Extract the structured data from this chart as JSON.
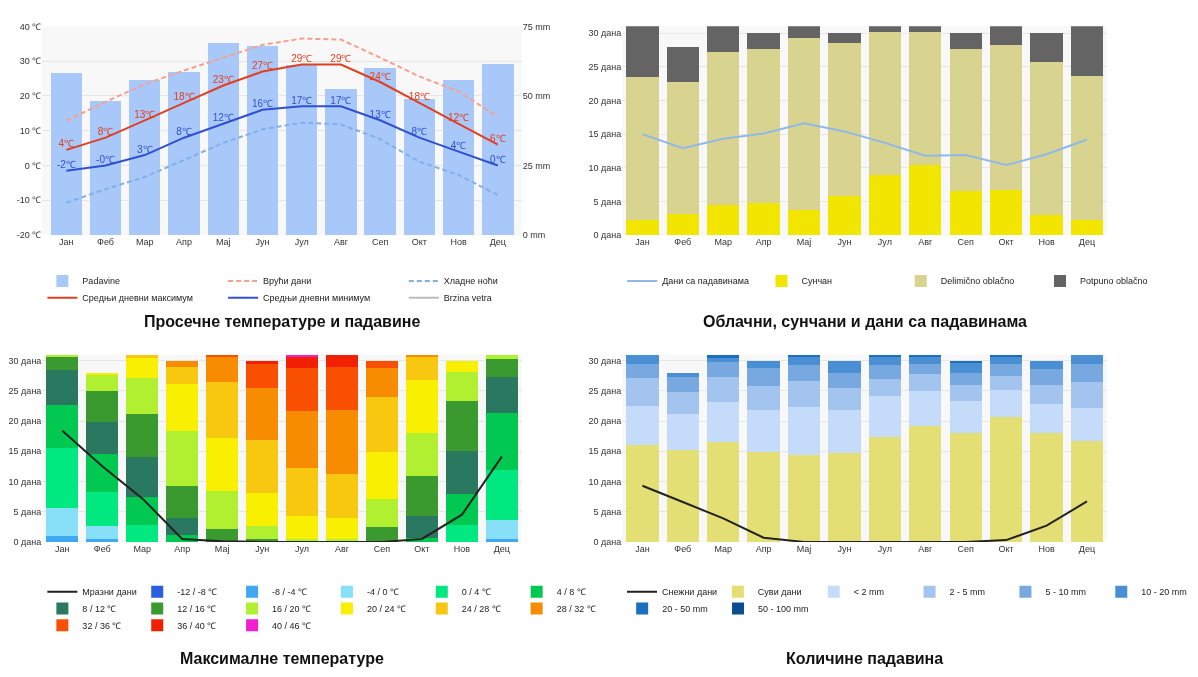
{
  "chart_data": [
    {
      "type": "bar",
      "title": "Просечне температуре и падавине",
      "categories": [
        "Јан",
        "Феб",
        "Мар",
        "Апр",
        "Мај",
        "Јун",
        "Јул",
        "Авг",
        "Сеп",
        "Окт",
        "Нов",
        "Дец"
      ],
      "ylim": [
        -20,
        40
      ],
      "yticks": [
        {
          "value": -20,
          "label": "-20 ℃"
        },
        {
          "value": -10,
          "label": "-10 ℃"
        },
        {
          "value": 0,
          "label": "0 ℃"
        },
        {
          "value": 10,
          "label": "10 ℃"
        },
        {
          "value": 20,
          "label": "20 ℃"
        },
        {
          "value": 30,
          "label": "30 ℃"
        },
        {
          "value": 40,
          "label": "40 ℃"
        }
      ],
      "y2lim": [
        0,
        75
      ],
      "y2ticks": [
        {
          "value": 0,
          "label": "0 mm"
        },
        {
          "value": 25,
          "label": "25 mm"
        },
        {
          "value": 50,
          "label": "50 mm"
        },
        {
          "value": 75,
          "label": "75 mm"
        }
      ],
      "grid": "y",
      "legend": "bottom",
      "marker": "none",
      "series": [
        {
          "name": "Padavine",
          "type": "bar",
          "axis": "y2",
          "color": "#a8c8fa",
          "values": [
            58.2,
            48.2,
            55.7,
            58.5,
            68.9,
            68.1,
            61.1,
            52.5,
            60,
            49,
            55.7,
            61.3
          ]
        },
        {
          "name": "Врући дани",
          "type": "line",
          "line_style": "dashed",
          "color": "#f8a090",
          "values": [
            12.9,
            18.3,
            23.4,
            27.3,
            31,
            34.7,
            36.5,
            36.2,
            31,
            25.6,
            21.3,
            14
          ]
        },
        {
          "name": "Хладне ноћи",
          "type": "line",
          "line_style": "dashed",
          "color": "#80b0e8",
          "values": [
            -10.7,
            -6.8,
            -3.3,
            1.6,
            6.5,
            10.4,
            12.3,
            11.8,
            7.6,
            1.1,
            -2.7,
            -8.5
          ]
        },
        {
          "name": "Средњи дневни максимум",
          "type": "line",
          "line_style": "solid",
          "color": "#e04020",
          "values": [
            4.5,
            8,
            13,
            18,
            23,
            27,
            29,
            29,
            24,
            18,
            12,
            6
          ],
          "value_labels": [
            "4℃",
            "8℃",
            "13℃",
            "18℃",
            "23℃",
            "27℃",
            "29℃",
            "29℃",
            "24℃",
            "18℃",
            "12℃",
            "6℃"
          ]
        },
        {
          "name": "Средњи дневни минимум",
          "type": "line",
          "line_style": "solid",
          "color": "#3050d0",
          "values": [
            -1.5,
            0,
            3,
            8,
            12,
            16,
            17,
            17,
            13,
            8,
            4,
            0
          ],
          "value_labels": [
            "-2℃",
            "-0℃",
            "3℃",
            "8℃",
            "12℃",
            "16℃",
            "17℃",
            "17℃",
            "13℃",
            "8℃",
            "4℃",
            "0℃"
          ]
        },
        {
          "name": "Brzina vetra",
          "type": "line",
          "line_style": "solid",
          "color": "#bbbbbb",
          "values": [
            null,
            null,
            null,
            null,
            null,
            null,
            null,
            null,
            null,
            null,
            null,
            null
          ]
        }
      ]
    },
    {
      "type": "bar",
      "stacked": true,
      "title": "Облачни, сунчани и дани са падавинама",
      "categories": [
        "Јан",
        "Феб",
        "Мар",
        "Апр",
        "Мај",
        "Јун",
        "Јул",
        "Авг",
        "Сеп",
        "Окт",
        "Нов",
        "Дец"
      ],
      "ylim": [
        0,
        31
      ],
      "yticks": [
        {
          "value": 0,
          "label": "0 дана"
        },
        {
          "value": 5,
          "label": "5 дана"
        },
        {
          "value": 10,
          "label": "10 дана"
        },
        {
          "value": 15,
          "label": "15 дана"
        },
        {
          "value": 20,
          "label": "20 дана"
        },
        {
          "value": 25,
          "label": "25 дана"
        },
        {
          "value": 30,
          "label": "30 дана"
        }
      ],
      "grid": "y",
      "legend": "bottom",
      "marker": "none",
      "series": [
        {
          "name": "Дани са падавинама",
          "type": "line",
          "color": "#90b8e8",
          "values": [
            15,
            12.9,
            14.3,
            15.1,
            16.6,
            15.4,
            13.7,
            11.8,
            11.9,
            10.4,
            12,
            14.2
          ]
        },
        {
          "name": "Сунчан",
          "type": "bar",
          "color": "#f2e600",
          "values": [
            2.3,
            3.2,
            4.4,
            4.7,
            3.7,
            5.8,
            8.9,
            10.4,
            6.6,
            6.7,
            3,
            2.3
          ]
        },
        {
          "name": "Delimično oblačno",
          "type": "bar",
          "color": "#d8d490",
          "values": [
            21.2,
            19.6,
            22.8,
            22.9,
            25.5,
            22.8,
            21.3,
            19.8,
            21.1,
            21.6,
            22.7,
            21.3
          ]
        },
        {
          "name": "Potpuno oblačno",
          "type": "bar",
          "color": "#646464",
          "values": [
            7.5,
            5.2,
            3.8,
            2.4,
            1.8,
            1.4,
            0.8,
            0.8,
            2.3,
            2.7,
            4.3,
            7.4
          ]
        }
      ]
    },
    {
      "type": "bar",
      "stacked": true,
      "title": "Максималне температуре",
      "categories": [
        "Јан",
        "Феб",
        "Мар",
        "Апр",
        "Мај",
        "Јун",
        "Јул",
        "Авг",
        "Сеп",
        "Окт",
        "Нов",
        "Дец"
      ],
      "ylim": [
        0,
        31
      ],
      "yticks": [
        {
          "value": 0,
          "label": "0 дана"
        },
        {
          "value": 5,
          "label": "5 дана"
        },
        {
          "value": 10,
          "label": "10 дана"
        },
        {
          "value": 15,
          "label": "15 дана"
        },
        {
          "value": 20,
          "label": "20 дана"
        },
        {
          "value": 25,
          "label": "25 дана"
        },
        {
          "value": 30,
          "label": "30 дана"
        }
      ],
      "grid": "y",
      "legend": "bottom",
      "marker": "none",
      "series": [
        {
          "name": "Мразни дани",
          "type": "line",
          "color": "#222222",
          "values": [
            18.4,
            12.5,
            7.2,
            0.5,
            0.1,
            0,
            0,
            0,
            0,
            0.5,
            4.5,
            14.1
          ]
        },
        {
          "name": "-12 / -8 ℃",
          "color": "#2860e0",
          "values": [
            null,
            null,
            null,
            null,
            null,
            null,
            null,
            null,
            null,
            null,
            null,
            null
          ]
        },
        {
          "name": "-8 / -4 ℃",
          "color": "#40a8f0",
          "values": [
            0.9,
            0.5,
            null,
            null,
            null,
            null,
            null,
            null,
            null,
            null,
            null,
            0.5
          ]
        },
        {
          "name": "-4 / 0 ℃",
          "color": "#88e0f8",
          "values": [
            4.7,
            2.2,
            null,
            null,
            null,
            null,
            null,
            null,
            null,
            null,
            null,
            3.2
          ]
        },
        {
          "name": "0 / 4 ℃",
          "color": "#00e880",
          "values": [
            9.9,
            5.5,
            2.8,
            null,
            null,
            null,
            null,
            null,
            null,
            null,
            2.8,
            8.2
          ]
        },
        {
          "name": "4 / 8 ℃",
          "color": "#00c850",
          "values": [
            7.1,
            6.3,
            4.6,
            1.2,
            null,
            null,
            null,
            null,
            null,
            0.6,
            5.2,
            9.5
          ]
        },
        {
          "name": "8 / 12 ℃",
          "color": "#2a7860",
          "values": [
            5.8,
            5.3,
            6.6,
            2.7,
            null,
            null,
            null,
            null,
            null,
            3.7,
            7,
            5.8
          ]
        },
        {
          "name": "12 / 16 ℃",
          "color": "#3a9a30",
          "values": [
            2.2,
            5.2,
            7.1,
            5.4,
            2.2,
            0.5,
            null,
            null,
            2.4,
            6.6,
            8.3,
            3.1
          ]
        },
        {
          "name": "16 / 20 ℃",
          "color": "#b0f030",
          "values": [
            0.4,
            2.7,
            6,
            9.1,
            6.3,
            2.2,
            0.5,
            0.5,
            4.7,
            7.1,
            4.8,
            0.7
          ]
        },
        {
          "name": "20 / 24 ℃",
          "color": "#f8f000",
          "values": [
            null,
            0.3,
            3.4,
            7.8,
            8.7,
            5.4,
            3.8,
            3.4,
            7.7,
            8.8,
            1.9,
            null
          ]
        },
        {
          "name": "24 / 28 ℃",
          "color": "#f8c810",
          "values": [
            null,
            null,
            0.5,
            2.8,
            9.2,
            8.7,
            7.9,
            7.4,
            9.2,
            3.8,
            null,
            null
          ]
        },
        {
          "name": "28 / 32 ℃",
          "color": "#f88c00",
          "values": [
            null,
            null,
            null,
            0.9,
            4.2,
            8.7,
            9.4,
            10.6,
            4.7,
            0.4,
            null,
            null
          ]
        },
        {
          "name": "32 / 36 ℃",
          "color": "#f85000",
          "values": [
            null,
            null,
            null,
            null,
            0.4,
            3.9,
            7.2,
            7,
            1.3,
            null,
            null,
            null
          ]
        },
        {
          "name": "36 / 40 ℃",
          "color": "#f02000",
          "values": [
            null,
            null,
            null,
            null,
            null,
            0.6,
            2,
            2.1,
            null,
            null,
            null,
            null
          ]
        },
        {
          "name": "40 / 46 ℃",
          "color": "#f020d0",
          "values": [
            null,
            null,
            null,
            null,
            null,
            null,
            0.2,
            null,
            null,
            null,
            null,
            null
          ]
        }
      ]
    },
    {
      "type": "bar",
      "stacked": true,
      "title": "Количине падавина",
      "categories": [
        "Јан",
        "Феб",
        "Мар",
        "Апр",
        "Мај",
        "Јун",
        "Јул",
        "Авг",
        "Сеп",
        "Окт",
        "Нов",
        "Дец"
      ],
      "ylim": [
        0,
        31
      ],
      "yticks": [
        {
          "value": 0,
          "label": "0 дана"
        },
        {
          "value": 5,
          "label": "5 дана"
        },
        {
          "value": 10,
          "label": "10 дана"
        },
        {
          "value": 15,
          "label": "15 дана"
        },
        {
          "value": 20,
          "label": "20 дана"
        },
        {
          "value": 25,
          "label": "25 дана"
        },
        {
          "value": 30,
          "label": "30 дана"
        }
      ],
      "grid": "y",
      "legend": "bottom",
      "marker": "none",
      "series": [
        {
          "name": "Снежни дани",
          "type": "line",
          "color": "#222222",
          "values": [
            9.3,
            6.6,
            3.9,
            0.7,
            0,
            0,
            0,
            0,
            0,
            0.3,
            2.7,
            6.7
          ]
        },
        {
          "name": "Суви дани",
          "color": "#e4df74",
          "values": [
            16,
            15.2,
            16.6,
            14.9,
            14.3,
            14.7,
            17.3,
            19.2,
            18,
            20.6,
            18,
            16.7
          ]
        },
        {
          "name": "< 2 mm",
          "color": "#c4dcfa",
          "values": [
            6.5,
            6,
            6.5,
            7,
            8,
            7.1,
            6.8,
            5.7,
            5.3,
            4.6,
            4.8,
            5.5
          ]
        },
        {
          "name": "2 - 5 mm",
          "color": "#a4c4f0",
          "values": [
            4.6,
            3.6,
            4.2,
            3.9,
            4.3,
            3.7,
            2.8,
            2.9,
            2.7,
            2.3,
            3.2,
            4.3
          ]
        },
        {
          "name": "5 - 10 mm",
          "color": "#78a8e0",
          "values": [
            2.3,
            2.5,
            2.5,
            2.9,
            2.7,
            2.4,
            2.3,
            1.6,
            1.9,
            2,
            2.6,
            2.9
          ]
        },
        {
          "name": "10 - 20 mm",
          "color": "#4a8ed4",
          "values": [
            1.6,
            0.7,
            0.7,
            1.3,
            1.5,
            2.1,
            1.5,
            1.3,
            1.7,
            1.2,
            1.4,
            1.6
          ]
        },
        {
          "name": "20 - 50 mm",
          "color": "#1a70bc",
          "values": [
            null,
            null,
            0.5,
            null,
            0.2,
            null,
            0.3,
            0.3,
            0.4,
            0.3,
            null,
            null
          ]
        },
        {
          "name": "50 - 100 mm",
          "color": "#0a4e90",
          "values": [
            null,
            null,
            null,
            null,
            null,
            null,
            null,
            null,
            null,
            null,
            null,
            null
          ]
        }
      ]
    }
  ]
}
